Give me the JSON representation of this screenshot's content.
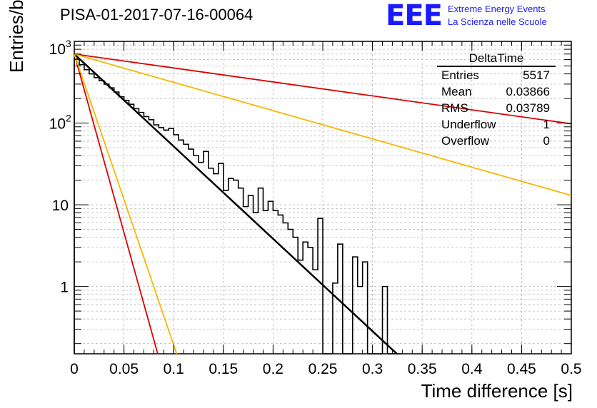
{
  "header": {
    "title": "PISA-01-2017-07-16-00064",
    "logo": {
      "mark": "EEE",
      "line1": "Extreme Energy Events",
      "line2": "La Scienza nelle Scuole",
      "color": "#1a1aff"
    }
  },
  "stats": {
    "name": "DeltaTime",
    "rows": [
      {
        "label": "Entries",
        "value": "5517"
      },
      {
        "label": "Mean",
        "value": "0.03866"
      },
      {
        "label": "RMS",
        "value": "0.03789"
      },
      {
        "label": "Underflow",
        "value": "1"
      },
      {
        "label": "Overflow",
        "value": "0"
      }
    ]
  },
  "chart_data": {
    "type": "line",
    "title": "PISA-01-2017-07-16-00064",
    "xlabel": "Time difference [s]",
    "ylabel": "Entries/bin",
    "xlim": [
      0,
      0.5
    ],
    "ylim": [
      0.15,
      1000
    ],
    "y_scale": "log",
    "grid": true,
    "x_ticks": [
      "0",
      "0.05",
      "0.1",
      "0.15",
      "0.2",
      "0.25",
      "0.3",
      "0.35",
      "0.4",
      "0.45",
      "0.5"
    ],
    "y_ticks": [
      {
        "value": 1,
        "label": "1"
      },
      {
        "value": 10,
        "label": "10"
      },
      {
        "value": 100,
        "label": "10",
        "exp": "2"
      },
      {
        "value": 1000,
        "label": "10",
        "exp": "3"
      }
    ],
    "histogram": {
      "bin_width": 0.005,
      "color": "#000000",
      "counts": [
        620,
        520,
        450,
        400,
        360,
        330,
        300,
        270,
        240,
        210,
        190,
        170,
        150,
        135,
        120,
        110,
        95,
        88,
        82,
        86,
        72,
        62,
        55,
        48,
        40,
        33,
        45,
        28,
        24,
        32,
        15,
        21,
        20,
        16,
        9.5,
        13,
        8,
        16,
        8.5,
        11,
        8.5,
        7.5,
        6,
        5,
        4,
        2.1,
        3.5,
        3.0,
        1.6,
        6.8,
        0.15,
        0.15,
        1.1,
        3.3,
        0.15,
        0.15,
        2.3,
        1.0,
        2.0,
        0.15,
        0.15,
        0.15,
        1.0,
        0.15,
        0.15,
        0.15
      ],
      "floor": 0.15
    },
    "series": [
      {
        "color": "#000000",
        "start": [
          0,
          700
        ],
        "end": [
          0.33,
          0.13
        ],
        "width": 2.5
      },
      {
        "color": "#dd0000",
        "start": [
          0,
          700
        ],
        "end": [
          0.5,
          98
        ],
        "width": 1.8
      },
      {
        "color": "#f5b800",
        "start": [
          0,
          700
        ],
        "end": [
          0.5,
          13
        ],
        "width": 1.8
      },
      {
        "color": "#dd0000",
        "start": [
          0,
          700
        ],
        "end": [
          0.088,
          0.1
        ],
        "width": 1.8
      },
      {
        "color": "#f5b800",
        "start": [
          0,
          700
        ],
        "end": [
          0.108,
          0.1
        ],
        "width": 1.8
      }
    ]
  }
}
